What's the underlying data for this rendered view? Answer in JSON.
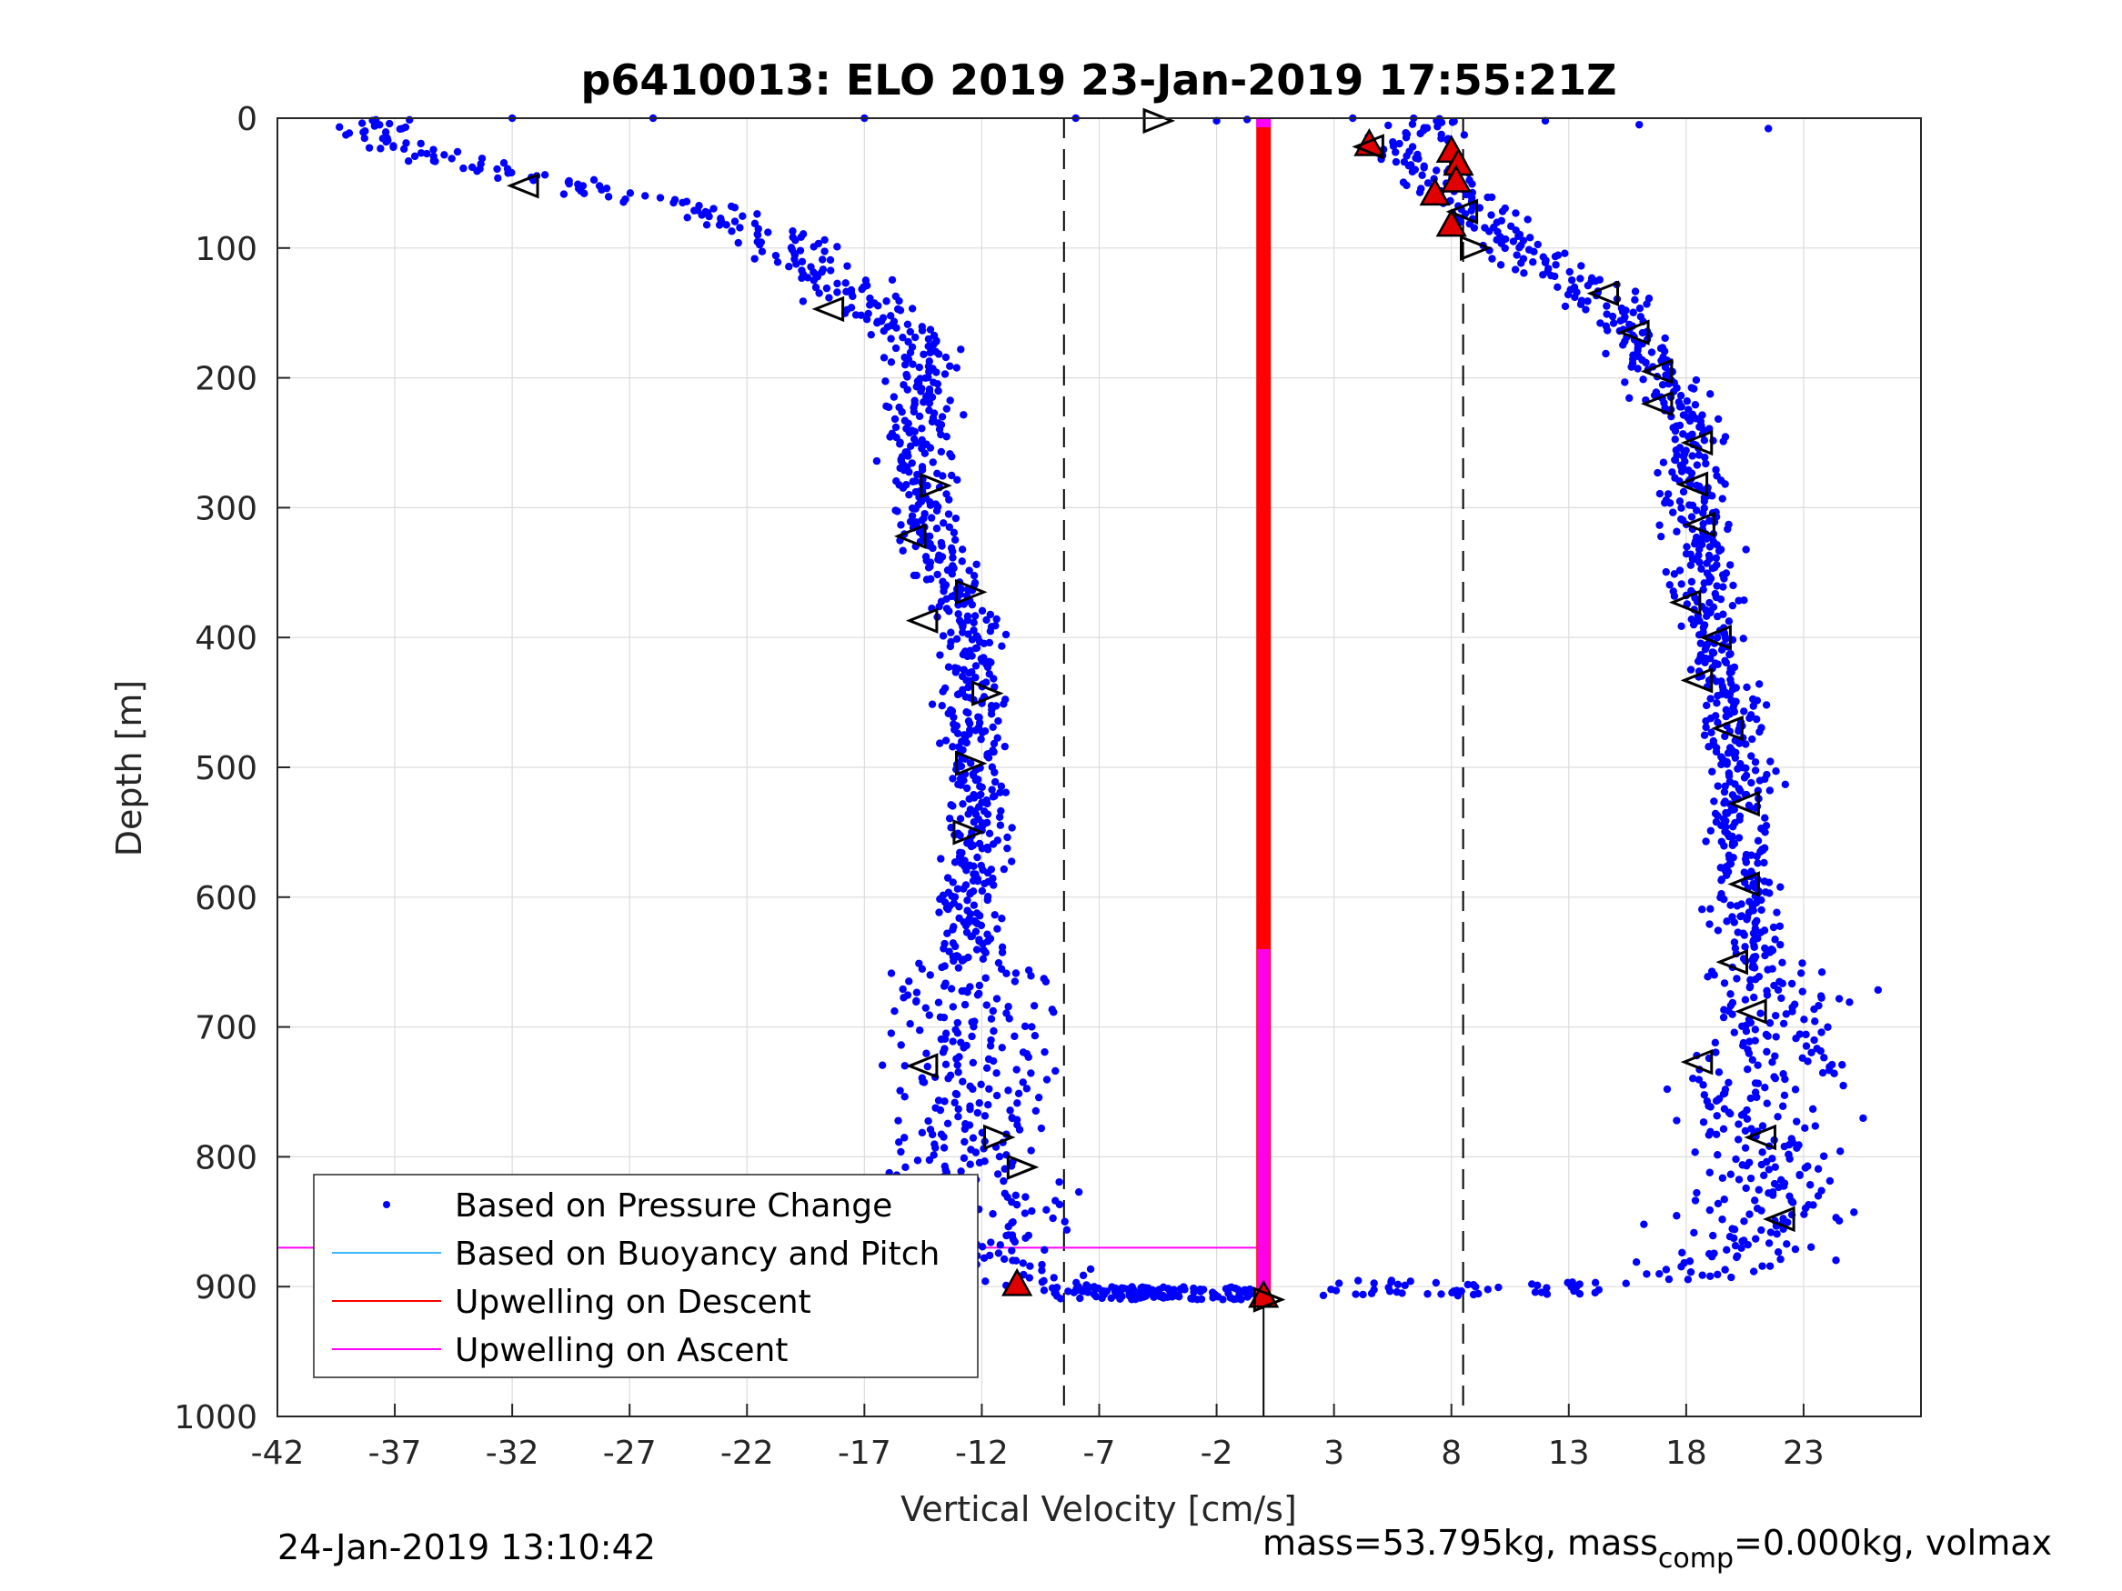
{
  "chart_data": {
    "type": "scatter",
    "title": "p6410013: ELO 2019 23-Jan-2019 17:55:21Z",
    "xlabel": "Vertical Velocity [cm/s]",
    "ylabel": "Depth [m]",
    "xlim": [
      -42,
      28
    ],
    "ylim": [
      0,
      1000
    ],
    "y_reversed": true,
    "grid": true,
    "xticks": [
      -42,
      -37,
      -32,
      -27,
      -22,
      -17,
      -12,
      -7,
      -2,
      3,
      8,
      13,
      18,
      23
    ],
    "yticks": [
      0,
      100,
      200,
      300,
      400,
      500,
      600,
      700,
      800,
      900,
      1000
    ],
    "threshold_lines_x": [
      -8.5,
      8.5
    ],
    "max_depth_line": {
      "x": 0,
      "y_from": 905,
      "y_to": 1000
    },
    "legend": {
      "position": "lower-left",
      "entries": [
        {
          "label": "Based on Pressure Change",
          "marker": "dot",
          "color": "#0000ff"
        },
        {
          "label": "Based on Buoyancy and Pitch",
          "marker": "line",
          "color": "#3fb6ff"
        },
        {
          "label": "Upwelling on Descent",
          "marker": "line",
          "color": "#ff0000"
        },
        {
          "label": "Upwelling on Ascent",
          "marker": "line",
          "color": "#ff00ff"
        }
      ]
    },
    "series": [
      {
        "name": "Based on Pressure Change",
        "color": "#0000ff",
        "branches": [
          {
            "depth": [
              0,
              15,
              30,
              50,
              70,
              90,
              110,
              130,
              150,
              170,
              200,
              250,
              300,
              350,
              400,
              450,
              500,
              550,
              600,
              650,
              700,
              750,
              800,
              850,
              890,
              903,
              908
            ],
            "velocity": [
              -38,
              -38,
              -35,
              -30,
              -24,
              -20.5,
              -19.5,
              -18.5,
              -16.5,
              -14.5,
              -14.5,
              -14.7,
              -14.7,
              -13.5,
              -12.3,
              -12.4,
              -12.6,
              -12.3,
              -12.7,
              -12.4,
              -12.6,
              -12.3,
              -12.4,
              -11.9,
              -11.7,
              -7,
              -2
            ]
          },
          {
            "depth": [
              0,
              20,
              40,
              60,
              80,
              100,
              120,
              140,
              170,
              200,
              250,
              300,
              350,
              400,
              450,
              500,
              550,
              600,
              650,
              700,
              750,
              800,
              850,
              890,
              905
            ],
            "velocity": [
              8,
              6,
              7,
              8,
              9.5,
              11,
              12.5,
              14.5,
              16,
              17,
              18.5,
              18.3,
              18.8,
              19,
              19.8,
              20.5,
              20.3,
              20.5,
              21,
              21.5,
              21,
              21.5,
              21,
              20,
              10
            ]
          }
        ],
        "scatter_spread_cm_s": [
          1.0,
          1.5,
          2.5
        ],
        "sparse_surface_points": [
          {
            "depth": 0,
            "velocity": -32
          },
          {
            "depth": 0,
            "velocity": -26
          },
          {
            "depth": 0,
            "velocity": -17
          },
          {
            "depth": 0,
            "velocity": -8
          },
          {
            "depth": 2,
            "velocity": -2
          },
          {
            "depth": 1,
            "velocity": -0.7
          },
          {
            "depth": 0,
            "velocity": 3.8
          },
          {
            "depth": 2,
            "velocity": 12
          },
          {
            "depth": 5,
            "velocity": 16
          },
          {
            "depth": 8,
            "velocity": 21.5
          }
        ]
      },
      {
        "name": "Based on Buoyancy and Pitch",
        "color": "#3fb6ff",
        "shown": false
      },
      {
        "name": "Upwelling on Descent",
        "color": "#ff0000",
        "x": 0,
        "y_from": 0,
        "y_to": 905
      },
      {
        "name": "Upwelling on Ascent",
        "color": "#ff00ff",
        "x": 0,
        "y_from": 0,
        "y_to": 905,
        "hline_depths": [
          0,
          870
        ]
      }
    ],
    "markers": {
      "red_triangles": [
        {
          "velocity": 4.5,
          "depth": 20
        },
        {
          "velocity": 8,
          "depth": 25
        },
        {
          "velocity": 8.3,
          "depth": 35
        },
        {
          "velocity": 8.2,
          "depth": 48
        },
        {
          "velocity": 7.3,
          "depth": 58
        },
        {
          "velocity": 8,
          "depth": 82
        },
        {
          "velocity": -10.5,
          "depth": 898
        },
        {
          "velocity": 0,
          "depth": 907
        }
      ],
      "left_triangles": [
        {
          "velocity": -31.5,
          "depth": 52
        },
        {
          "velocity": -18.5,
          "depth": 147
        },
        {
          "velocity": -15,
          "depth": 322
        },
        {
          "velocity": -14.5,
          "depth": 387
        },
        {
          "velocity": -14.5,
          "depth": 730
        },
        {
          "velocity": 4.5,
          "depth": 22
        },
        {
          "velocity": 8.5,
          "depth": 72
        },
        {
          "velocity": 14.5,
          "depth": 135
        },
        {
          "velocity": 15.8,
          "depth": 165
        },
        {
          "velocity": 16.8,
          "depth": 195
        },
        {
          "velocity": 16.8,
          "depth": 220
        },
        {
          "velocity": 18.5,
          "depth": 250
        },
        {
          "velocity": 18.3,
          "depth": 282
        },
        {
          "velocity": 18.6,
          "depth": 313
        },
        {
          "velocity": 18,
          "depth": 373
        },
        {
          "velocity": 19.3,
          "depth": 400
        },
        {
          "velocity": 18.5,
          "depth": 433
        },
        {
          "velocity": 19.8,
          "depth": 470
        },
        {
          "velocity": 20.5,
          "depth": 528
        },
        {
          "velocity": 20.5,
          "depth": 590
        },
        {
          "velocity": 20,
          "depth": 650
        },
        {
          "velocity": 20.8,
          "depth": 688
        },
        {
          "velocity": 18.5,
          "depth": 727
        },
        {
          "velocity": 21.2,
          "depth": 785
        },
        {
          "velocity": 22,
          "depth": 848
        }
      ],
      "right_triangles": [
        {
          "velocity": -4.5,
          "depth": 2
        },
        {
          "velocity": -14,
          "depth": 283
        },
        {
          "velocity": -12.5,
          "depth": 365
        },
        {
          "velocity": -11.8,
          "depth": 443
        },
        {
          "velocity": -12.5,
          "depth": 497
        },
        {
          "velocity": -12.6,
          "depth": 550
        },
        {
          "velocity": -11.3,
          "depth": 785
        },
        {
          "velocity": -10.3,
          "depth": 808
        },
        {
          "velocity": -13,
          "depth": 830
        },
        {
          "velocity": 9,
          "depth": 100
        },
        {
          "velocity": 0.2,
          "depth": 910
        }
      ]
    }
  },
  "footer": {
    "timestamp": "24-Jan-2019 13:10:42",
    "mass_text": "mass=53.795kg, mass",
    "mass_sub": "comp",
    "mass_text2": "=0.000kg, volmax"
  }
}
